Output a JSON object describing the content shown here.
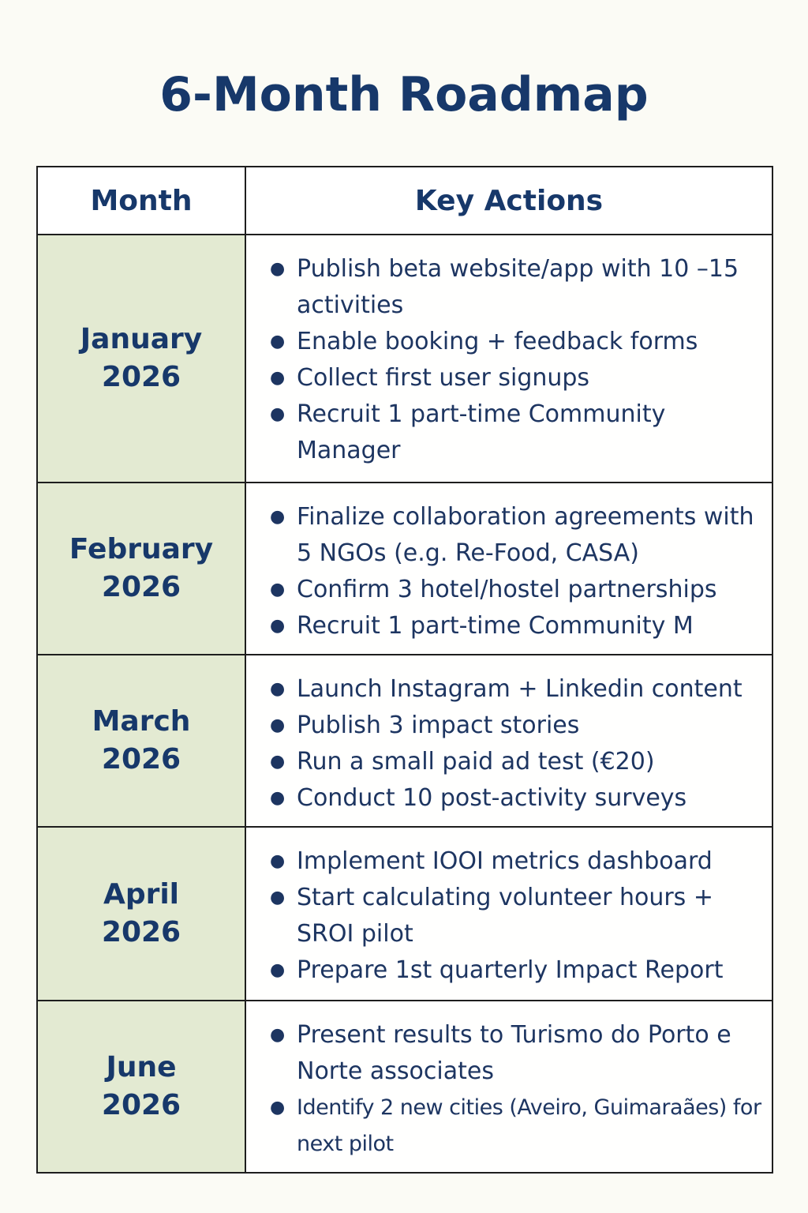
{
  "title": "6-Month Roadmap",
  "table": {
    "headers": {
      "month": "Month",
      "actions": "Key Actions"
    },
    "rows": [
      {
        "month_name": "January",
        "year": "2026",
        "actions": [
          "Publish beta website/app with 10 –15 activities",
          "Enable booking + feedback forms",
          "Collect first user signups",
          "Recruit 1 part-time Community Manager"
        ]
      },
      {
        "month_name": "February",
        "year": "2026",
        "actions": [
          "Finalize collaboration agreements with 5 NGOs (e.g. Re-Food, CASA)",
          "Confirm 3 hotel/hostel partnerships",
          "Recruit 1 part-time Community M"
        ]
      },
      {
        "month_name": "March",
        "year": "2026",
        "actions": [
          "Launch Instagram + Linkedin content",
          "Publish 3 impact stories",
          "Run a small paid ad test  (€20)",
          "Conduct 10 post-activity surveys"
        ]
      },
      {
        "month_name": "April",
        "year": "2026",
        "actions": [
          "Implement IOOI metrics dashboard",
          "Start calculating volunteer hours + SROI pilot",
          "Prepare 1st quarterly Impact Report"
        ]
      },
      {
        "month_name": "June",
        "year": "2026",
        "actions": [
          "Present results to Turismo do Porto e Norte associates",
          "Identify 2 new cities (Aveiro, Guimaraães) for next pilot"
        ]
      }
    ]
  }
}
